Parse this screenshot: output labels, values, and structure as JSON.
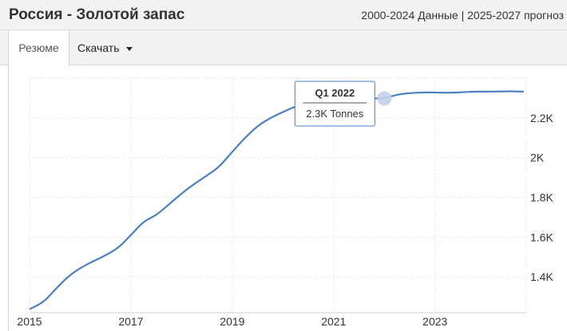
{
  "header": {
    "title": "Россия - Золотой запас",
    "subtitle": "2000-2024 Данные | 2025-2027 прогноз"
  },
  "tabs": [
    {
      "label": "Резюме"
    },
    {
      "label": "Скачать"
    }
  ],
  "colors": {
    "line": "#4a7fc0",
    "grid": "#dddddd",
    "marker": "#c3d0ea"
  },
  "tooltip": {
    "title": "Q1 2022",
    "value": "2.3K Tonnes"
  },
  "chart_data": {
    "type": "line",
    "title": "",
    "xlabel": "",
    "ylabel": "",
    "x_ticks": [
      "2015",
      "2017",
      "2019",
      "2021",
      "2023"
    ],
    "y_ticks": [
      {
        "value": 1400,
        "label": "1.4K"
      },
      {
        "value": 1600,
        "label": "1.6K"
      },
      {
        "value": 1800,
        "label": "1.8K"
      },
      {
        "value": 2000,
        "label": "2K"
      },
      {
        "value": 2200,
        "label": "2.2K"
      }
    ],
    "xlim": [
      2015.0,
      2024.8
    ],
    "ylim": [
      1220,
      2400
    ],
    "grid": true,
    "series": [
      {
        "points": [
          [
            2015.0,
            1238
          ],
          [
            2015.25,
            1265
          ],
          [
            2015.5,
            1335
          ],
          [
            2015.75,
            1400
          ],
          [
            2016.0,
            1445
          ],
          [
            2016.25,
            1478
          ],
          [
            2016.5,
            1508
          ],
          [
            2016.75,
            1545
          ],
          [
            2017.0,
            1610
          ],
          [
            2017.25,
            1680
          ],
          [
            2017.5,
            1710
          ],
          [
            2017.75,
            1765
          ],
          [
            2018.0,
            1820
          ],
          [
            2018.25,
            1868
          ],
          [
            2018.5,
            1910
          ],
          [
            2018.75,
            1955
          ],
          [
            2019.0,
            2030
          ],
          [
            2019.25,
            2100
          ],
          [
            2019.5,
            2160
          ],
          [
            2019.75,
            2200
          ],
          [
            2020.0,
            2230
          ],
          [
            2020.25,
            2258
          ],
          [
            2020.5,
            2283
          ],
          [
            2020.75,
            2298
          ],
          [
            2021.0,
            2298
          ],
          [
            2021.25,
            2298
          ],
          [
            2021.5,
            2298
          ],
          [
            2021.75,
            2298
          ],
          [
            2022.0,
            2298
          ],
          [
            2022.25,
            2318
          ],
          [
            2022.5,
            2325
          ],
          [
            2022.75,
            2328
          ],
          [
            2023.0,
            2328
          ],
          [
            2023.25,
            2326
          ],
          [
            2023.5,
            2329
          ],
          [
            2023.75,
            2332
          ],
          [
            2024.0,
            2332
          ],
          [
            2024.25,
            2333
          ],
          [
            2024.5,
            2334
          ],
          [
            2024.75,
            2332
          ]
        ],
        "highlight": {
          "x": 2022.0,
          "y": 2298
        }
      }
    ]
  }
}
